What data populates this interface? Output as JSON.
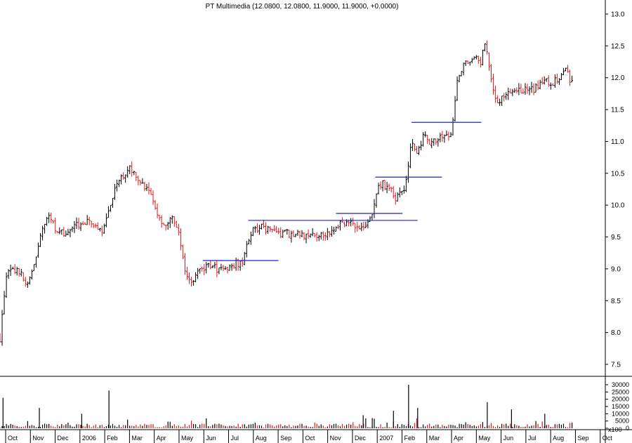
{
  "chart_data": {
    "type": "candlestick-bar",
    "title": "PT Multimedia (12.0800, 12.0800, 11.9000, 11.9000, +0.0000)",
    "price_axis": {
      "min": 7.5,
      "max": 13.0,
      "ticks": [
        "7.5",
        "8.0",
        "8.5",
        "9.0",
        "9.5",
        "10.0",
        "10.5",
        "11.0",
        "11.5",
        "12.0",
        "12.5",
        "13.0"
      ]
    },
    "volume_axis": {
      "min": 0,
      "max": 30000,
      "ticks": [
        "30000",
        "25000",
        "20000",
        "15000",
        "10000",
        "5000",
        "0"
      ],
      "scale_label": "x100"
    },
    "x_labels": [
      "Oct",
      "Nov",
      "Dec",
      "2006",
      "Feb",
      "Mar",
      "Apr",
      "May",
      "Jun",
      "Jul",
      "Aug",
      "Sep",
      "Oct",
      "Nov",
      "Dec",
      "2007",
      "Feb",
      "Mar",
      "Apr",
      "May",
      "Jun",
      "Jul",
      "Aug",
      "Sep",
      "Oct"
    ],
    "colors": {
      "up": "#000000",
      "down": "#e8161b",
      "trendline": "#2222cc",
      "axis": "#000000"
    },
    "trend_lines": [
      {
        "x_start": 0.335,
        "x_end": 0.46,
        "price": 9.13
      },
      {
        "x_start": 0.41,
        "x_end": 0.69,
        "price": 9.76
      },
      {
        "x_start": 0.555,
        "x_end": 0.665,
        "price": 9.87
      },
      {
        "x_start": 0.62,
        "x_end": 0.73,
        "price": 10.44
      },
      {
        "x_start": 0.68,
        "x_end": 0.795,
        "price": 11.3
      }
    ],
    "price_path": [
      [
        0.0,
        7.9
      ],
      [
        0.01,
        8.9
      ],
      [
        0.03,
        9.0
      ],
      [
        0.045,
        8.7
      ],
      [
        0.06,
        9.2
      ],
      [
        0.07,
        9.6
      ],
      [
        0.08,
        9.8
      ],
      [
        0.095,
        9.6
      ],
      [
        0.11,
        9.5
      ],
      [
        0.125,
        9.7
      ],
      [
        0.14,
        9.75
      ],
      [
        0.155,
        9.7
      ],
      [
        0.17,
        9.6
      ],
      [
        0.18,
        9.9
      ],
      [
        0.19,
        10.3
      ],
      [
        0.205,
        10.45
      ],
      [
        0.215,
        10.6
      ],
      [
        0.23,
        10.4
      ],
      [
        0.245,
        10.2
      ],
      [
        0.26,
        9.9
      ],
      [
        0.27,
        9.7
      ],
      [
        0.285,
        9.8
      ],
      [
        0.295,
        9.6
      ],
      [
        0.305,
        8.95
      ],
      [
        0.315,
        8.8
      ],
      [
        0.325,
        8.9
      ],
      [
        0.34,
        9.05
      ],
      [
        0.36,
        9.0
      ],
      [
        0.38,
        9.05
      ],
      [
        0.4,
        9.1
      ],
      [
        0.415,
        9.6
      ],
      [
        0.43,
        9.65
      ],
      [
        0.45,
        9.6
      ],
      [
        0.47,
        9.55
      ],
      [
        0.49,
        9.55
      ],
      [
        0.51,
        9.5
      ],
      [
        0.53,
        9.55
      ],
      [
        0.55,
        9.6
      ],
      [
        0.565,
        9.75
      ],
      [
        0.58,
        9.7
      ],
      [
        0.6,
        9.65
      ],
      [
        0.615,
        9.8
      ],
      [
        0.625,
        10.35
      ],
      [
        0.64,
        10.3
      ],
      [
        0.655,
        10.1
      ],
      [
        0.67,
        10.3
      ],
      [
        0.68,
        11.0
      ],
      [
        0.69,
        10.8
      ],
      [
        0.7,
        11.1
      ],
      [
        0.71,
        10.9
      ],
      [
        0.725,
        11.1
      ],
      [
        0.745,
        11.1
      ],
      [
        0.755,
        11.9
      ],
      [
        0.765,
        12.2
      ],
      [
        0.775,
        12.3
      ],
      [
        0.785,
        12.3
      ],
      [
        0.795,
        12.2
      ],
      [
        0.8,
        12.6
      ],
      [
        0.81,
        12.1
      ],
      [
        0.82,
        11.6
      ],
      [
        0.835,
        11.7
      ],
      [
        0.85,
        11.8
      ],
      [
        0.87,
        11.8
      ],
      [
        0.89,
        11.85
      ],
      [
        0.9,
        12.0
      ],
      [
        0.91,
        11.9
      ],
      [
        0.925,
        12.0
      ],
      [
        0.935,
        12.1
      ],
      [
        0.945,
        11.9
      ]
    ],
    "volume_spikes": [
      [
        0.005,
        21000
      ],
      [
        0.065,
        14000
      ],
      [
        0.135,
        10000
      ],
      [
        0.18,
        26000
      ],
      [
        0.6,
        9000
      ],
      [
        0.615,
        7000
      ],
      [
        0.65,
        12000
      ],
      [
        0.675,
        30000
      ],
      [
        0.69,
        14000
      ],
      [
        0.805,
        18000
      ],
      [
        0.845,
        13000
      ],
      [
        0.9,
        10000
      ]
    ]
  }
}
